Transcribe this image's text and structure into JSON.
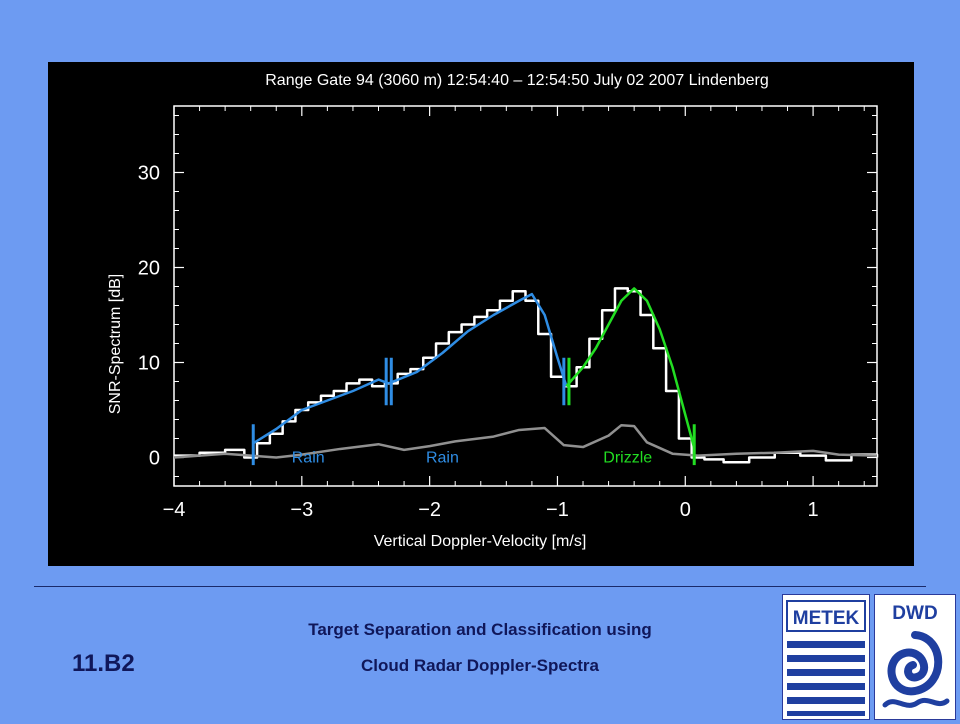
{
  "footer": {
    "slide_id": "11.B2",
    "title_line1": "Target Separation and Classification using",
    "title_line2": "Cloud Radar Doppler-Spectra"
  },
  "logos": {
    "metek": "METEK",
    "dwd": "DWD"
  },
  "colors": {
    "background": "#6d9bf2",
    "plot_background": "#000000",
    "spectrum": "#ffffff",
    "noise": "#909090",
    "rain_fit": "#2f8de4",
    "drizzle_fit": "#22dd22",
    "footer_text": "#10175a"
  },
  "chart_data": {
    "type": "line",
    "title": "Range Gate 94 (3060 m)  12:54:40 – 12:54:50  July 02 2007 Lindenberg",
    "xlabel": "Vertical Doppler-Velocity [m/s]",
    "ylabel": "SNR-Spectrum [dB]",
    "xlim": [
      -4,
      1.5
    ],
    "ylim": [
      -3,
      37
    ],
    "xticks": [
      -4,
      -3,
      -2,
      -1,
      0,
      1
    ],
    "xtick_labels": [
      "−4",
      "−3",
      "−2",
      "−1",
      "0",
      "1"
    ],
    "yticks": [
      0,
      10,
      20,
      30
    ],
    "ytick_labels": [
      "0",
      "10",
      "20",
      "30"
    ],
    "grid": false,
    "series": [
      {
        "style": "step",
        "x": [
          -4.0,
          -3.8,
          -3.6,
          -3.45,
          -3.35,
          -3.25,
          -3.15,
          -3.05,
          -2.95,
          -2.85,
          -2.75,
          -2.65,
          -2.55,
          -2.45,
          -2.35,
          -2.25,
          -2.15,
          -2.05,
          -1.95,
          -1.85,
          -1.75,
          -1.65,
          -1.55,
          -1.45,
          -1.35,
          -1.25,
          -1.15,
          -1.05,
          -0.95,
          -0.85,
          -0.75,
          -0.65,
          -0.55,
          -0.45,
          -0.35,
          -0.25,
          -0.15,
          -0.05,
          0.05,
          0.15,
          0.3,
          0.5,
          0.7,
          0.9,
          1.1,
          1.3,
          1.5
        ],
        "y": [
          0.2,
          0.5,
          0.8,
          0.0,
          1.5,
          2.5,
          3.8,
          5.0,
          5.8,
          6.5,
          7.0,
          7.8,
          8.2,
          7.5,
          7.8,
          8.8,
          9.3,
          10.5,
          12.0,
          13.2,
          14.0,
          14.8,
          15.5,
          16.5,
          17.5,
          16.5,
          13.0,
          8.5,
          7.5,
          9.5,
          12.5,
          15.5,
          17.8,
          17.5,
          15.0,
          11.5,
          7.0,
          2.0,
          0.0,
          -0.2,
          -0.5,
          0.0,
          0.5,
          0.2,
          -0.3,
          0.3,
          0.0
        ]
      },
      {
        "style": "line",
        "x": [
          -4.0,
          -3.6,
          -3.4,
          -3.2,
          -3.0,
          -2.7,
          -2.4,
          -2.2,
          -2.0,
          -1.8,
          -1.5,
          -1.3,
          -1.1,
          -0.95,
          -0.8,
          -0.6,
          -0.5,
          -0.4,
          -0.3,
          -0.1,
          0.1,
          0.4,
          0.7,
          1.0,
          1.2,
          1.5
        ],
        "y": [
          0.0,
          0.4,
          0.2,
          0.0,
          0.3,
          0.9,
          1.4,
          0.8,
          1.2,
          1.7,
          2.2,
          2.9,
          3.1,
          1.3,
          1.1,
          2.3,
          3.4,
          3.3,
          1.6,
          0.4,
          0.2,
          0.4,
          0.5,
          0.7,
          0.3,
          0.2
        ]
      },
      {
        "style": "line",
        "x": [
          -3.38,
          -3.2,
          -3.0,
          -2.8,
          -2.6,
          -2.4,
          -2.32
        ],
        "y": [
          1.5,
          3.0,
          5.0,
          6.0,
          7.0,
          8.2,
          7.8
        ]
      },
      {
        "style": "line",
        "x": [
          -2.32,
          -2.1,
          -1.9,
          -1.7,
          -1.5,
          -1.3,
          -1.2,
          -1.1,
          -1.0,
          -0.93
        ],
        "y": [
          7.8,
          9.0,
          11.0,
          13.3,
          15.0,
          16.5,
          17.2,
          15.0,
          10.5,
          7.5
        ]
      },
      {
        "style": "line",
        "x": [
          -0.93,
          -0.8,
          -0.7,
          -0.6,
          -0.5,
          -0.4,
          -0.3,
          -0.2,
          -0.1,
          0.0,
          0.07
        ],
        "y": [
          7.5,
          9.5,
          11.5,
          14.0,
          16.5,
          17.8,
          16.5,
          13.5,
          9.5,
          4.5,
          1.0
        ]
      }
    ],
    "separators": [
      {
        "x": -3.38,
        "y_range": [
          -0.8,
          3.5
        ]
      },
      {
        "x": -2.34,
        "y_range": [
          5.5,
          10.5
        ]
      },
      {
        "x": -2.3,
        "y_range": [
          5.5,
          10.5
        ]
      },
      {
        "x": -0.95,
        "y_range": [
          5.5,
          10.5
        ]
      },
      {
        "x": -0.91,
        "y_range": [
          5.5,
          10.5
        ]
      },
      {
        "x": 0.07,
        "y_range": [
          -0.8,
          3.5
        ]
      }
    ],
    "annotations": [
      {
        "text": "Rain",
        "x": -2.95,
        "y": -0.5
      },
      {
        "text": "Rain",
        "x": -1.9,
        "y": -0.5
      },
      {
        "text": "Drizzle",
        "x": -0.45,
        "y": -0.5
      }
    ]
  }
}
